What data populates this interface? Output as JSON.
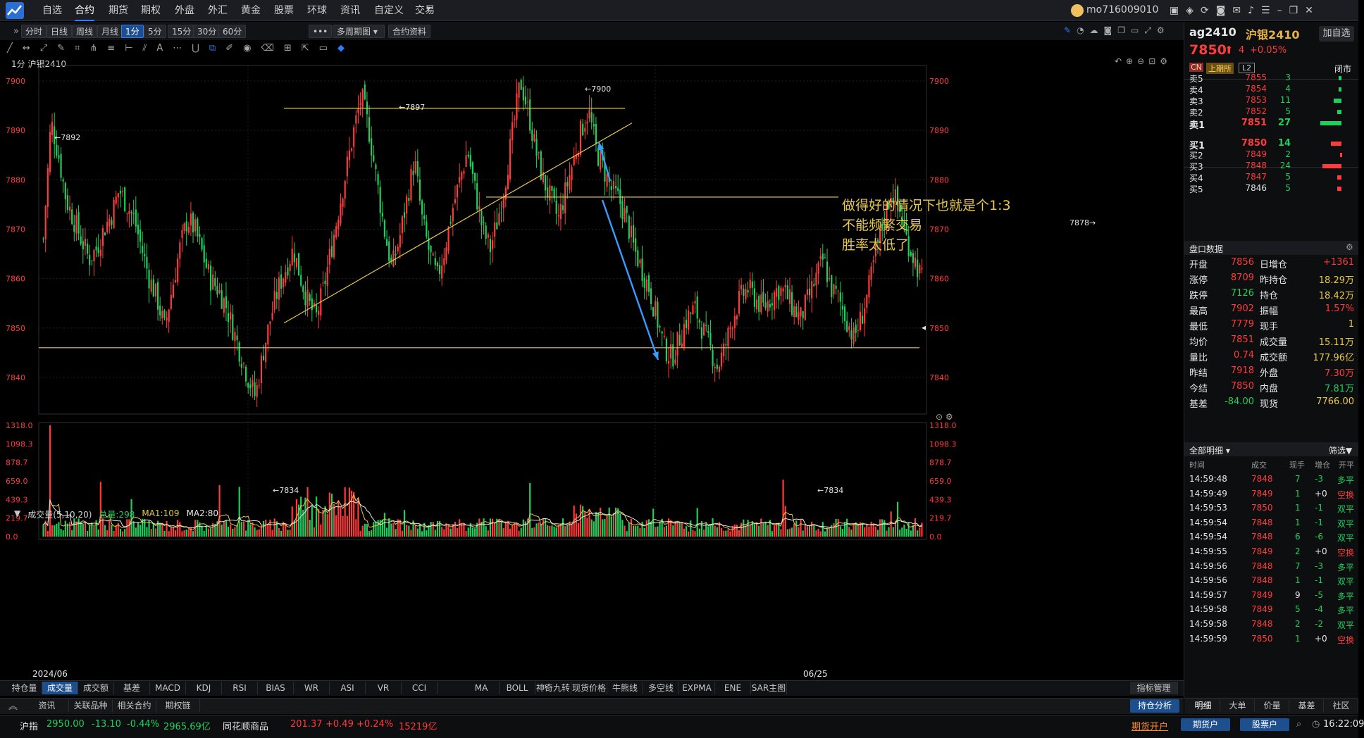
{
  "top_nav": {
    "items": [
      "自选",
      "合约",
      "期货",
      "期权",
      "外盘",
      "外汇",
      "黄金",
      "股票",
      "环球",
      "资讯",
      "自定义",
      "交易"
    ],
    "active": "合约",
    "user": "mo716009010"
  },
  "period_bar": {
    "buttons": [
      "分时",
      "日线",
      "周线",
      "月线",
      "1分",
      "5分",
      "15分",
      "30分",
      "60分"
    ],
    "active": "1分",
    "more": "•••",
    "multi_period": "多周期图",
    "contract_info": "合约资料"
  },
  "chart_title": "1分 沪银2410",
  "annotation": {
    "line1": "做得好的情况下也就是个1:3",
    "line2": "不能频繁交易",
    "line3": "胜率太低了"
  },
  "price_labels": {
    "p7892": "←7892",
    "p7897": "←7897",
    "p7900": "←7900",
    "p7834a": "←7834",
    "p7834b": "←7834",
    "p7878": "7878→"
  },
  "volume_header": {
    "title": "成交量(5,10,20)",
    "total": "总量:298",
    "ma1": "MA1:109",
    "ma2": "MA2:80"
  },
  "x_axis": {
    "left": "2024/06",
    "mid": "06/25"
  },
  "indicator_tabs_left": [
    "持仓量",
    "成交量",
    "成交额",
    "基差",
    "MACD",
    "KDJ",
    "RSI",
    "BIAS",
    "WR",
    "ASI",
    "VR",
    "CCI"
  ],
  "indicator_tabs_left_active": "成交量",
  "indicator_tabs_right": [
    "MA",
    "BOLL",
    "神奇九转",
    "现货价格",
    "牛熊线",
    "多空线",
    "EXPMA",
    "ENE",
    "SAR主图"
  ],
  "indicator_manage": "指标管理",
  "sub_tabs": [
    "资讯",
    "关联品种",
    "相关合约",
    "期权链"
  ],
  "position_analysis": "持仓分析",
  "right_panel": {
    "code": "ag2410",
    "name": "沪银2410",
    "add_watch": "加自选",
    "price": "7850",
    "change": "4",
    "change_pct": "+0.05%",
    "tag_cn": "CN",
    "tag_exchange": "上期所",
    "tag_l2": "L2",
    "status": "闭市",
    "asks": [
      {
        "label": "卖5",
        "price": "7855",
        "vol": "3",
        "bar": 0.12
      },
      {
        "label": "卖4",
        "price": "7854",
        "vol": "4",
        "bar": 0.12
      },
      {
        "label": "卖3",
        "price": "7853",
        "vol": "11",
        "bar": 0.37
      },
      {
        "label": "卖2",
        "price": "7852",
        "vol": "5",
        "bar": 0.2
      },
      {
        "label": "卖1",
        "price": "7851",
        "vol": "27",
        "bar": 1.0
      }
    ],
    "bids": [
      {
        "label": "买1",
        "price": "7850",
        "vol": "14",
        "bar": 0.5
      },
      {
        "label": "买2",
        "price": "7849",
        "vol": "2",
        "bar": 0.08
      },
      {
        "label": "买3",
        "price": "7848",
        "vol": "24",
        "bar": 0.9
      },
      {
        "label": "买4",
        "price": "7847",
        "vol": "5",
        "bar": 0.2
      },
      {
        "label": "买5",
        "price": "7846",
        "vol": "5",
        "bar": 0.2
      }
    ],
    "pankou_title": "盘口数据",
    "stats": [
      {
        "l1": "开盘",
        "v1": "7856",
        "l2": "日增仓",
        "v2": "+1361"
      },
      {
        "l1": "涨停",
        "v1": "8709",
        "l2": "昨持仓",
        "v2": "18.29万"
      },
      {
        "l1": "跌停",
        "v1": "7126",
        "l2": "持仓",
        "v2": "18.42万"
      },
      {
        "l1": "最高",
        "v1": "7902",
        "l2": "振幅",
        "v2": "1.57%"
      },
      {
        "l1": "最低",
        "v1": "7779",
        "l2": "现手",
        "v2": "1"
      },
      {
        "l1": "均价",
        "v1": "7851",
        "l2": "成交量",
        "v2": "15.11万"
      },
      {
        "l1": "量比",
        "v1": "0.74",
        "l2": "成交额",
        "v2": "177.96亿"
      },
      {
        "l1": "昨结",
        "v1": "7918",
        "l2": "外盘",
        "v2": "7.30万"
      },
      {
        "l1": "今结",
        "v1": "7850",
        "l2": "内盘",
        "v2": "7.81万"
      },
      {
        "l1": "基差",
        "v1": "-84.00",
        "l2": "现货",
        "v2": "7766.00"
      }
    ],
    "detail_title": "全部明细",
    "filter": "筛选",
    "trade_headers": [
      "时间",
      "成交",
      "现手",
      "增仓",
      "开平"
    ],
    "trades": [
      {
        "t": "14:59:48",
        "p": "7848",
        "v": "7",
        "d": "-3",
        "k": "多平"
      },
      {
        "t": "14:59:49",
        "p": "7849",
        "v": "1",
        "d": "+0",
        "k": "空换"
      },
      {
        "t": "14:59:53",
        "p": "7850",
        "v": "1",
        "d": "-1",
        "k": "双平"
      },
      {
        "t": "14:59:54",
        "p": "7848",
        "v": "1",
        "d": "-1",
        "k": "双平"
      },
      {
        "t": "14:59:54",
        "p": "7848",
        "v": "6",
        "d": "-6",
        "k": "双平"
      },
      {
        "t": "14:59:55",
        "p": "7849",
        "v": "2",
        "d": "+0",
        "k": "空换"
      },
      {
        "t": "14:59:56",
        "p": "7848",
        "v": "7",
        "d": "-3",
        "k": "多平"
      },
      {
        "t": "14:59:56",
        "p": "7848",
        "v": "1",
        "d": "-1",
        "k": "双平"
      },
      {
        "t": "14:59:57",
        "p": "7849",
        "v": "9",
        "d": "-5",
        "k": "多平"
      },
      {
        "t": "14:59:58",
        "p": "7849",
        "v": "5",
        "d": "-4",
        "k": "多平"
      },
      {
        "t": "14:59:58",
        "p": "7848",
        "v": "2",
        "d": "-2",
        "k": "双平"
      },
      {
        "t": "14:59:59",
        "p": "7850",
        "v": "1",
        "d": "+0",
        "k": "空换"
      }
    ],
    "bottom_tabs": [
      "明细",
      "大单",
      "价量",
      "基差",
      "社区"
    ]
  },
  "status_bar": {
    "idx_name": "沪指",
    "idx_val": "2950.00",
    "idx_chg": "-13.10",
    "idx_pct": "-0.44%",
    "idx_amt": "2965.69亿",
    "com_name": "同花顺商品",
    "com_val": "201.37",
    "com_chg": "+0.49",
    "com_pct": "+0.24%",
    "com_amt": "15219亿",
    "futures_open": "期货开户",
    "futures_acct": "期货户",
    "stock_acct": "股票户",
    "time": "16:22:09"
  },
  "colors": {
    "up": "#ff3b3b",
    "down": "#1fd05c",
    "accent": "#2e7cf6",
    "trendline": "#e6c84a",
    "arrow": "#3a9bff",
    "bg": "#000000"
  },
  "chart_data": {
    "type": "candlestick",
    "title": "1分 沪银2410",
    "ylim": [
      7836,
      7902
    ],
    "y_ticks": [
      7840,
      7850,
      7860,
      7870,
      7880,
      7890,
      7900
    ],
    "x_labels": [
      "2024/06",
      "06/25"
    ],
    "price_path": [
      7868,
      7892,
      7885,
      7876,
      7872,
      7868,
      7864,
      7866,
      7870,
      7873,
      7878,
      7875,
      7872,
      7866,
      7860,
      7856,
      7850,
      7858,
      7866,
      7872,
      7870,
      7865,
      7860,
      7858,
      7855,
      7850,
      7845,
      7840,
      7836,
      7845,
      7852,
      7858,
      7862,
      7866,
      7860,
      7855,
      7852,
      7858,
      7866,
      7874,
      7882,
      7890,
      7897,
      7890,
      7880,
      7870,
      7862,
      7868,
      7876,
      7884,
      7872,
      7865,
      7860,
      7866,
      7874,
      7880,
      7886,
      7878,
      7870,
      7866,
      7872,
      7880,
      7890,
      7900,
      7894,
      7886,
      7880,
      7876,
      7872,
      7878,
      7884,
      7890,
      7894,
      7886,
      7882,
      7878,
      7876,
      7872,
      7866,
      7862,
      7858,
      7852,
      7846,
      7844,
      7848,
      7852,
      7854,
      7850,
      7846,
      7842,
      7846,
      7852,
      7856,
      7858,
      7856,
      7854,
      7856,
      7858,
      7857,
      7854,
      7852,
      7856,
      7860,
      7864,
      7858,
      7856,
      7852,
      7848,
      7852,
      7858,
      7866,
      7872,
      7878,
      7874,
      7868,
      7864,
      7860
    ],
    "volume": {
      "ylim": [
        0,
        1318.0
      ],
      "y_ticks": [
        "1318.0",
        "1098.3",
        "878.7",
        "659.0",
        "439.3",
        "219.7",
        "0.0"
      ]
    },
    "horizontal_lines": [
      7894.5,
      7876.5,
      7846
    ],
    "trendline": {
      "from": [
        0.105,
        7851
      ],
      "to": [
        0.425,
        7892
      ]
    },
    "arrows": [
      {
        "from": [
          0.795,
          7877
        ],
        "to": [
          0.77,
          7888
        ]
      },
      {
        "from": [
          0.782,
          7874
        ],
        "to": [
          0.852,
          7844
        ]
      }
    ]
  }
}
